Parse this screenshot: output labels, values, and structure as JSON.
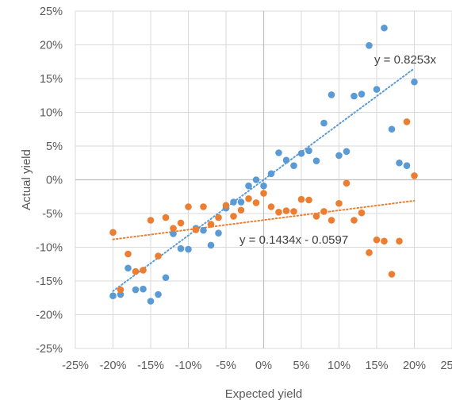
{
  "chart_data": {
    "type": "scatter",
    "xlabel": "Expected yield",
    "ylabel": "Actual yield",
    "xlim": [
      -0.25,
      0.25
    ],
    "ylim": [
      -0.25,
      0.25
    ],
    "xticks": [
      -0.25,
      -0.2,
      -0.15,
      -0.1,
      -0.05,
      0,
      0.05,
      0.1,
      0.15,
      0.2,
      0.25
    ],
    "yticks": [
      -0.25,
      -0.2,
      -0.15,
      -0.1,
      -0.05,
      0,
      0.05,
      0.1,
      0.15,
      0.2,
      0.25
    ],
    "xtick_labels": [
      "-25%",
      "-20%",
      "-15%",
      "-10%",
      "-5%",
      "0%",
      "5%",
      "10%",
      "15%",
      "20%",
      "25%"
    ],
    "ytick_labels": [
      "-25%",
      "-20%",
      "-15%",
      "-10%",
      "-5%",
      "0%",
      "5%",
      "10%",
      "15%",
      "20%",
      "25%"
    ],
    "grid": "vertical and horizontal major gridlines",
    "legend": "none",
    "colors": {
      "series1": "#5b9bd5",
      "series2": "#ed7d31",
      "grid": "#d9d9d9",
      "axis": "#bfbfbf"
    },
    "series": [
      {
        "color": "#5b9bd5",
        "trendline": {
          "slope": 0.8253,
          "intercept": 0,
          "x_range": [
            -0.2,
            0.2
          ],
          "label": "y = 0.8253x"
        },
        "points": [
          [
            -0.2,
            -0.172
          ],
          [
            -0.19,
            -0.17
          ],
          [
            -0.18,
            -0.131
          ],
          [
            -0.17,
            -0.163
          ],
          [
            -0.16,
            -0.162
          ],
          [
            -0.15,
            -0.18
          ],
          [
            -0.14,
            -0.17
          ],
          [
            -0.13,
            -0.145
          ],
          [
            -0.12,
            -0.08
          ],
          [
            -0.11,
            -0.102
          ],
          [
            -0.1,
            -0.103
          ],
          [
            -0.09,
            -0.072
          ],
          [
            -0.08,
            -0.075
          ],
          [
            -0.07,
            -0.097
          ],
          [
            -0.06,
            -0.079
          ],
          [
            -0.05,
            -0.042
          ],
          [
            -0.04,
            -0.033
          ],
          [
            -0.03,
            -0.033
          ],
          [
            -0.02,
            -0.009
          ],
          [
            -0.01,
            0.0
          ],
          [
            0.0,
            -0.009
          ],
          [
            0.01,
            0.009
          ],
          [
            0.02,
            0.04
          ],
          [
            0.03,
            0.029
          ],
          [
            0.04,
            0.021
          ],
          [
            0.05,
            0.039
          ],
          [
            0.06,
            0.043
          ],
          [
            0.07,
            0.028
          ],
          [
            0.08,
            0.084
          ],
          [
            0.09,
            0.126
          ],
          [
            0.1,
            0.036
          ],
          [
            0.11,
            0.042
          ],
          [
            0.12,
            0.124
          ],
          [
            0.13,
            0.127
          ],
          [
            0.14,
            0.199
          ],
          [
            0.15,
            0.134
          ],
          [
            0.16,
            0.225
          ],
          [
            0.17,
            0.075
          ],
          [
            0.18,
            0.025
          ],
          [
            0.19,
            0.021
          ],
          [
            0.2,
            0.145
          ]
        ]
      },
      {
        "color": "#ed7d31",
        "trendline": {
          "slope": 0.1434,
          "intercept": -0.0597,
          "x_range": [
            -0.2,
            0.2
          ],
          "label": "y = 0.1434x - 0.0597"
        },
        "points": [
          [
            -0.2,
            -0.078
          ],
          [
            -0.19,
            -0.163
          ],
          [
            -0.18,
            -0.11
          ],
          [
            -0.17,
            -0.136
          ],
          [
            -0.16,
            -0.134
          ],
          [
            -0.15,
            -0.06
          ],
          [
            -0.14,
            -0.113
          ],
          [
            -0.13,
            -0.056
          ],
          [
            -0.12,
            -0.072
          ],
          [
            -0.11,
            -0.064
          ],
          [
            -0.1,
            -0.04
          ],
          [
            -0.09,
            -0.074
          ],
          [
            -0.08,
            -0.04
          ],
          [
            -0.07,
            -0.066
          ],
          [
            -0.06,
            -0.056
          ],
          [
            -0.05,
            -0.038
          ],
          [
            -0.04,
            -0.054
          ],
          [
            -0.03,
            -0.045
          ],
          [
            -0.02,
            -0.028
          ],
          [
            -0.01,
            -0.034
          ],
          [
            0.0,
            -0.02
          ],
          [
            0.01,
            -0.04
          ],
          [
            0.02,
            -0.048
          ],
          [
            0.03,
            -0.046
          ],
          [
            0.04,
            -0.047
          ],
          [
            0.05,
            -0.029
          ],
          [
            0.06,
            -0.03
          ],
          [
            0.07,
            -0.054
          ],
          [
            0.08,
            -0.047
          ],
          [
            0.09,
            -0.06
          ],
          [
            0.1,
            -0.035
          ],
          [
            0.11,
            -0.005
          ],
          [
            0.12,
            -0.06
          ],
          [
            0.13,
            -0.049
          ],
          [
            0.14,
            -0.108
          ],
          [
            0.15,
            -0.089
          ],
          [
            0.16,
            -0.091
          ],
          [
            0.17,
            -0.14
          ],
          [
            0.18,
            -0.091
          ],
          [
            0.19,
            0.086
          ],
          [
            0.2,
            0.006
          ]
        ]
      }
    ]
  }
}
